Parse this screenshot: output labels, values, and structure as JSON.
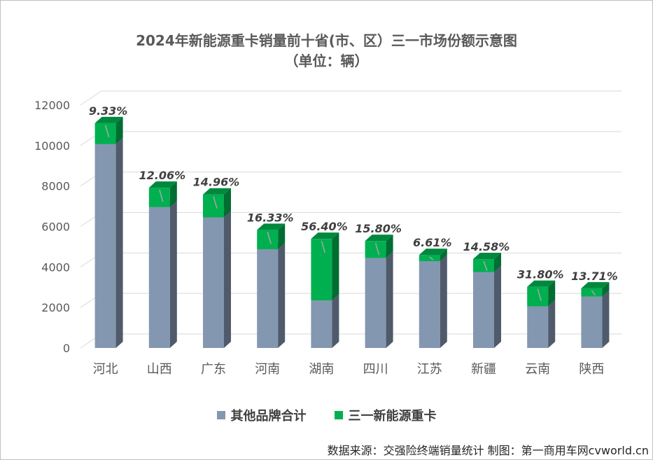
{
  "chart_data": {
    "type": "bar",
    "title": "2024年新能源重卡销量前十省(市、区）三一市场份额示意图",
    "subtitle": "（单位：辆）",
    "categories": [
      "河北",
      "山西",
      "广东",
      "河南",
      "湖南",
      "四川",
      "江苏",
      "新疆",
      "云南",
      "陕西"
    ],
    "series": [
      {
        "name": "其他品牌合计",
        "color": "#8497b0",
        "values": [
          10070,
          6960,
          6450,
          4880,
          2350,
          4450,
          4290,
          3750,
          2060,
          2540
        ]
      },
      {
        "name": "三一新能源重卡",
        "color": "#00b050",
        "values": [
          1036,
          955,
          1134,
          952,
          3039,
          835,
          304,
          640,
          960,
          404
        ]
      }
    ],
    "data_labels": [
      "9.33%",
      "12.06%",
      "14.96%",
      "16.33%",
      "56.40%",
      "15.80%",
      "6.61%",
      "14.58%",
      "31.80%",
      "13.71%"
    ],
    "yticks": [
      "0",
      "2000",
      "4000",
      "6000",
      "8000",
      "10000",
      "12000"
    ],
    "ylim": [
      0,
      12000
    ],
    "stacked": true,
    "grid": true,
    "legend": "bottom"
  },
  "source_text": "数据来源：交强险终端销量统计 制图：第一商用车网cvworld.cn"
}
